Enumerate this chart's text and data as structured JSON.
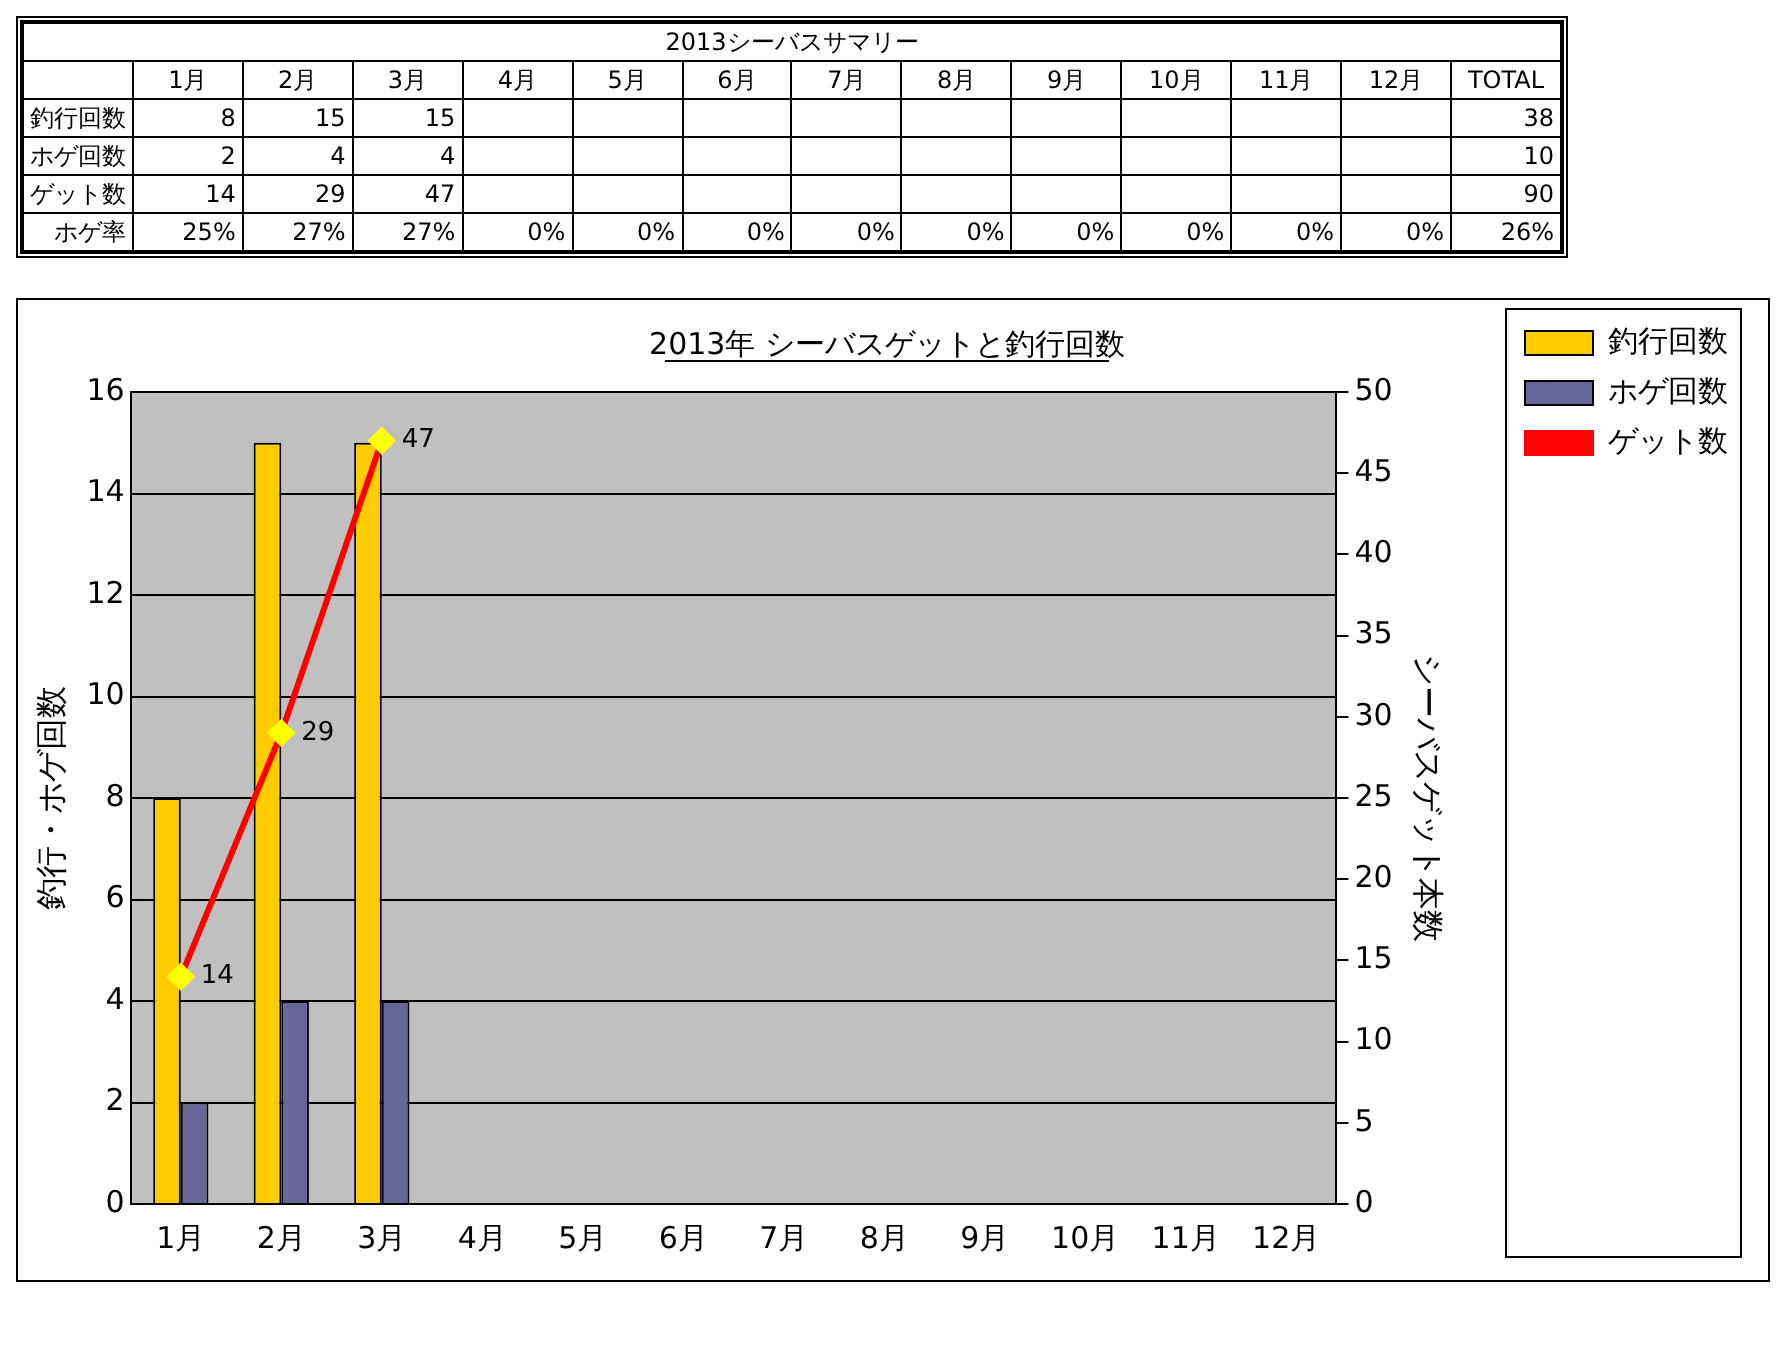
{
  "chart_data": [
    {
      "type": "heatmap",
      "title": "2013シーバスサマリー",
      "categories": [
        "1月",
        "2月",
        "3月",
        "4月",
        "5月",
        "6月",
        "7月",
        "8月",
        "9月",
        "10月",
        "11月",
        "12月",
        "TOTAL"
      ],
      "y_categories": [
        "釣行回数",
        "ホゲ回数",
        "ゲット数",
        "ホゲ率"
      ],
      "cells": [
        [
          8,
          15,
          15,
          null,
          null,
          null,
          null,
          null,
          null,
          null,
          null,
          null,
          38
        ],
        [
          2,
          4,
          4,
          null,
          null,
          null,
          null,
          null,
          null,
          null,
          null,
          null,
          10
        ],
        [
          14,
          29,
          47,
          null,
          null,
          null,
          null,
          null,
          null,
          null,
          null,
          null,
          90
        ],
        [
          25,
          27,
          27,
          0,
          0,
          0,
          0,
          0,
          0,
          0,
          0,
          0,
          26
        ]
      ],
      "cell_labels": [
        [
          "8",
          "15",
          "15",
          null,
          null,
          null,
          null,
          null,
          null,
          null,
          null,
          null,
          "38"
        ],
        [
          "2",
          "4",
          "4",
          null,
          null,
          null,
          null,
          null,
          null,
          null,
          null,
          null,
          "10"
        ],
        [
          "14",
          "29",
          "47",
          null,
          null,
          null,
          null,
          null,
          null,
          null,
          null,
          null,
          "90"
        ],
        [
          "25%",
          "27%",
          "27%",
          "0%",
          "0%",
          "0%",
          "0%",
          "0%",
          "0%",
          "0%",
          "0%",
          "0%",
          "26%"
        ]
      ]
    },
    {
      "type": "bar",
      "title": "2013年 シーバスゲットと釣行回数",
      "ylabel": "釣行・ホゲ回数",
      "y2label": "シーバスゲット本数",
      "categories": [
        "1月",
        "2月",
        "3月",
        "4月",
        "5月",
        "6月",
        "7月",
        "8月",
        "9月",
        "10月",
        "11月",
        "12月"
      ],
      "series": [
        {
          "name": "釣行回数",
          "color": "#ffcc00",
          "values": [
            8,
            15,
            15,
            null,
            null,
            null,
            null,
            null,
            null,
            null,
            null,
            null
          ]
        },
        {
          "name": "ホゲ回数",
          "color": "#666699",
          "values": [
            2,
            4,
            4,
            null,
            null,
            null,
            null,
            null,
            null,
            null,
            null,
            null
          ]
        },
        {
          "name": "ゲット数",
          "type": "line",
          "axis": "y2",
          "color": "#ff0000",
          "marker": "diamond",
          "values": [
            14,
            29,
            47,
            null,
            null,
            null,
            null,
            null,
            null,
            null,
            null,
            null
          ],
          "value_labels": [
            "14",
            "29",
            "47",
            null,
            null,
            null,
            null,
            null,
            null,
            null,
            null,
            null
          ]
        }
      ],
      "ylim": [
        0,
        16
      ],
      "yticks": [
        0,
        2,
        4,
        6,
        8,
        10,
        12,
        14,
        16
      ],
      "y2lim": [
        0,
        50
      ],
      "y2ticks": [
        0,
        5,
        10,
        15,
        20,
        25,
        30,
        35,
        40,
        45,
        50
      ],
      "grid": "y",
      "legend": "top right"
    }
  ]
}
